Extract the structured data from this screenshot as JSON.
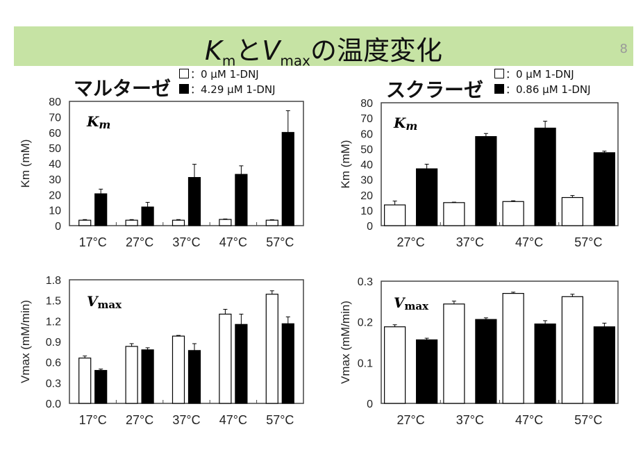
{
  "slide": {
    "title_k": "K",
    "title_m": "m",
    "title_and": "と",
    "title_v": "V",
    "title_max": "max",
    "title_rest": "の温度変化",
    "page_number": "8"
  },
  "left": {
    "enzyme": "マルターゼ",
    "legend": [
      "：0 μM 1-DNJ",
      "：4.29 μM 1-DNJ"
    ]
  },
  "right": {
    "enzyme": "スクラーゼ",
    "legend": [
      "：0 μM 1-DNJ",
      "：0.86 μM 1-DNJ"
    ]
  },
  "chart_data": [
    {
      "type": "bar",
      "label": "Km",
      "ylabel": "Km (mM)",
      "ylim": [
        0,
        80
      ],
      "yticks": [
        "0",
        "10",
        "20",
        "30",
        "40",
        "50",
        "60",
        "70",
        "80"
      ],
      "categories": [
        "17°C",
        "27°C",
        "37°C",
        "47°C",
        "57°C"
      ],
      "series": [
        {
          "name": "0 μM 1-DNJ",
          "values": [
            3.5,
            3.5,
            3.5,
            4,
            3.5
          ],
          "errors": [
            0.4,
            0.4,
            0.4,
            0.3,
            0.3
          ]
        },
        {
          "name": "4.29 μM 1-DNJ",
          "values": [
            20.5,
            12,
            31,
            33,
            60
          ],
          "errors": [
            3,
            3,
            8.5,
            5.5,
            14
          ]
        }
      ]
    },
    {
      "type": "bar",
      "label": "Km",
      "ylabel": "Km (mM)",
      "ylim": [
        0,
        80
      ],
      "yticks": [
        "0",
        "10",
        "20",
        "30",
        "40",
        "50",
        "60",
        "70",
        "80"
      ],
      "categories": [
        "27°C",
        "37°C",
        "47°C",
        "57°C"
      ],
      "series": [
        {
          "name": "0 μM 1-DNJ",
          "values": [
            13.5,
            15,
            15.7,
            18.3
          ],
          "errors": [
            2.5,
            0.3,
            0.5,
            1.3
          ]
        },
        {
          "name": "0.86 μM 1-DNJ",
          "values": [
            37,
            58,
            63.5,
            47.5
          ],
          "errors": [
            3,
            2,
            4.5,
            1
          ]
        }
      ]
    },
    {
      "type": "bar",
      "label": "Vmax",
      "ylabel": "Vmax (mM/min)",
      "ylim": [
        0,
        1.8
      ],
      "yticks": [
        "0.0",
        "0.3",
        "0.6",
        "0.9",
        "1.2",
        "1.5",
        "1.8"
      ],
      "categories": [
        "17°C",
        "27°C",
        "37°C",
        "47°C",
        "57°C"
      ],
      "series": [
        {
          "name": "0 μM 1-DNJ",
          "values": [
            0.66,
            0.83,
            0.98,
            1.3,
            1.59
          ],
          "errors": [
            0.03,
            0.04,
            0.01,
            0.07,
            0.05
          ]
        },
        {
          "name": "4.29 μM 1-DNJ",
          "values": [
            0.48,
            0.78,
            0.77,
            1.15,
            1.16
          ],
          "errors": [
            0.02,
            0.03,
            0.1,
            0.15,
            0.1
          ]
        }
      ]
    },
    {
      "type": "bar",
      "label": "Vmax",
      "ylabel": "Vmax (mM/min)",
      "ylim": [
        0,
        0.3
      ],
      "yticks": [
        "0",
        "0.1",
        "0.2",
        "0.3"
      ],
      "categories": [
        "27°C",
        "37°C",
        "47°C",
        "57°C"
      ],
      "series": [
        {
          "name": "0 μM 1-DNJ",
          "values": [
            0.188,
            0.244,
            0.27,
            0.262
          ],
          "errors": [
            0.005,
            0.007,
            0.003,
            0.006
          ]
        },
        {
          "name": "0.86 μM 1-DNJ",
          "values": [
            0.156,
            0.206,
            0.195,
            0.188
          ],
          "errors": [
            0.004,
            0.004,
            0.008,
            0.009
          ]
        }
      ]
    }
  ]
}
